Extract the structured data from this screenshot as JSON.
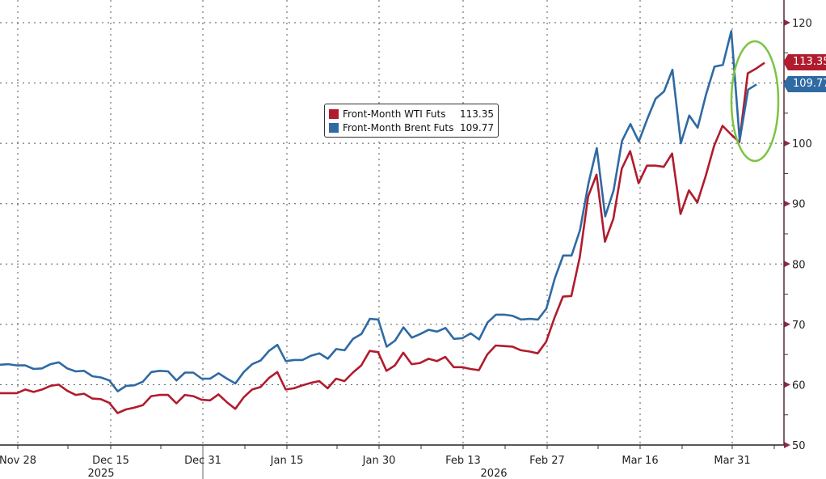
{
  "chart_data": {
    "type": "line",
    "title": "",
    "xlabel": "",
    "ylabel": "",
    "ylim": [
      50,
      120
    ],
    "yticks": [
      50,
      60,
      70,
      80,
      90,
      100,
      110,
      120
    ],
    "ytick_labels": [
      "50",
      "60",
      "70",
      "80",
      "90",
      "100",
      "",
      "120"
    ],
    "x_tick_labels": [
      "Nov 28",
      "Dec 15",
      "Dec 31",
      "Jan 15",
      "Jan 30",
      "Feb 13",
      "Feb 27",
      "Mar 16",
      "Mar 31"
    ],
    "year_labels": [
      "2025",
      "2026"
    ],
    "grid": true,
    "legend_position": "upper-center",
    "series": [
      {
        "name": "Front-Month WTI Futs",
        "color": "#b01c2e",
        "last": 113.35,
        "values": [
          58.6,
          58.6,
          58.6,
          59.2,
          58.8,
          59.2,
          59.8,
          60.0,
          59.0,
          58.3,
          58.5,
          57.7,
          57.6,
          57.0,
          55.3,
          55.9,
          56.2,
          56.6,
          58.1,
          58.3,
          58.3,
          56.9,
          58.3,
          58.1,
          57.5,
          57.4,
          58.4,
          57.1,
          56.0,
          57.9,
          59.2,
          59.6,
          61.1,
          62.1,
          59.2,
          59.4,
          59.9,
          60.3,
          60.6,
          59.4,
          61.0,
          60.6,
          62.0,
          63.2,
          65.6,
          65.4,
          62.3,
          63.2,
          65.3,
          63.4,
          63.6,
          64.3,
          63.9,
          64.6,
          62.9,
          62.9,
          62.6,
          62.4,
          65.0,
          66.5,
          66.4,
          66.3,
          65.7,
          65.5,
          65.2,
          67.1,
          71.1,
          74.6,
          74.7,
          81.1,
          91.2,
          94.8,
          83.7,
          87.5,
          95.8,
          98.7,
          93.4,
          96.3,
          96.3,
          96.1,
          98.3,
          88.3,
          92.2,
          90.2,
          94.6,
          99.6,
          102.9,
          101.5,
          100.2,
          111.6,
          112.4,
          113.35
        ]
      },
      {
        "name": "Front-Month Brent Futs",
        "color": "#2f6aa3",
        "last": 109.77,
        "values": [
          63.3,
          63.4,
          63.2,
          63.2,
          62.6,
          62.7,
          63.4,
          63.7,
          62.7,
          62.2,
          62.3,
          61.4,
          61.2,
          60.7,
          58.9,
          59.8,
          59.9,
          60.5,
          62.1,
          62.3,
          62.2,
          60.7,
          62.0,
          62.0,
          61.0,
          61.0,
          61.9,
          61.0,
          60.2,
          62.1,
          63.4,
          64.0,
          65.6,
          66.6,
          63.9,
          64.1,
          64.1,
          64.8,
          65.2,
          64.3,
          65.9,
          65.7,
          67.6,
          68.4,
          70.9,
          70.8,
          66.3,
          67.3,
          69.5,
          67.8,
          68.4,
          69.1,
          68.8,
          69.4,
          67.6,
          67.7,
          68.5,
          67.5,
          70.3,
          71.6,
          71.6,
          71.4,
          70.8,
          70.9,
          70.8,
          72.6,
          77.6,
          81.4,
          81.4,
          85.6,
          93.3,
          99.2,
          87.9,
          92.2,
          100.4,
          103.2,
          100.3,
          104.0,
          107.4,
          108.6,
          112.2,
          100.0,
          104.6,
          102.6,
          108.1,
          112.7,
          113.0,
          118.6,
          100.5,
          108.9,
          109.77
        ]
      }
    ]
  },
  "legend": {
    "items": [
      {
        "label": "Front-Month WTI Futs",
        "value": "113.35",
        "color": "#b01c2e"
      },
      {
        "label": "Front-Month Brent Futs",
        "value": "109.77",
        "color": "#2f6aa3"
      }
    ]
  },
  "price_tags": {
    "wti": "113.35",
    "brent": "109.77"
  },
  "highlight": {
    "shape": "ellipse",
    "color": "#7cc444"
  }
}
